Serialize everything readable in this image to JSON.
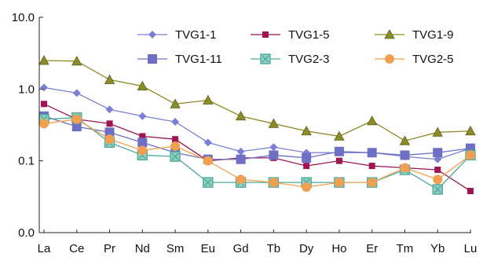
{
  "chart_data": {
    "type": "line",
    "title": "",
    "xlabel": "",
    "ylabel": "",
    "y_scale": "log",
    "ylim": [
      0.01,
      10
    ],
    "y_ticks": [
      {
        "value": 10,
        "label": "10.0"
      },
      {
        "value": 1,
        "label": "1.0"
      },
      {
        "value": 0.1,
        "label": "0.1"
      },
      {
        "value": 0.01,
        "label": "0.0"
      }
    ],
    "categories": [
      "La",
      "Ce",
      "Pr",
      "Nd",
      "Sm",
      "Eu",
      "Gd",
      "Tb",
      "Dy",
      "Ho",
      "Er",
      "Tm",
      "Yb",
      "Lu"
    ],
    "grid": false,
    "legend_position": "top-right",
    "series": [
      {
        "name": "TVG1-1",
        "color": "#7b7fd4",
        "marker": "diamond",
        "values": [
          1.05,
          0.88,
          0.52,
          0.42,
          0.35,
          0.18,
          0.135,
          0.155,
          0.13,
          0.13,
          0.13,
          0.115,
          0.105,
          0.15
        ]
      },
      {
        "name": "TVG1-5",
        "color": "#9e1551",
        "marker": "square",
        "values": [
          0.62,
          0.38,
          0.33,
          0.22,
          0.2,
          0.1,
          0.11,
          0.11,
          0.085,
          0.1,
          0.085,
          0.08,
          0.075,
          0.038
        ]
      },
      {
        "name": "TVG1-9",
        "color": "#8c8c28",
        "marker": "triangle",
        "values": [
          2.5,
          2.45,
          1.35,
          1.1,
          0.62,
          0.7,
          0.42,
          0.33,
          0.26,
          0.22,
          0.36,
          0.19,
          0.25,
          0.26
        ]
      },
      {
        "name": "TVG1-11",
        "color": "#6d6fc4",
        "marker": "bigsquare",
        "values": [
          0.42,
          0.3,
          0.25,
          0.18,
          0.13,
          0.105,
          0.105,
          0.12,
          0.11,
          0.135,
          0.13,
          0.12,
          0.13,
          0.15
        ]
      },
      {
        "name": "TVG2-3",
        "color": "#4fa89a",
        "marker": "xsquare",
        "values": [
          0.38,
          0.4,
          0.18,
          0.12,
          0.115,
          0.05,
          0.05,
          0.05,
          0.05,
          0.05,
          0.05,
          0.075,
          0.04,
          0.12
        ]
      },
      {
        "name": "TVG2-5",
        "color": "#f0a050",
        "marker": "circle",
        "values": [
          0.33,
          0.38,
          0.2,
          0.14,
          0.16,
          0.1,
          0.055,
          0.05,
          0.043,
          0.05,
          0.05,
          0.08,
          0.055,
          0.12
        ]
      }
    ]
  }
}
